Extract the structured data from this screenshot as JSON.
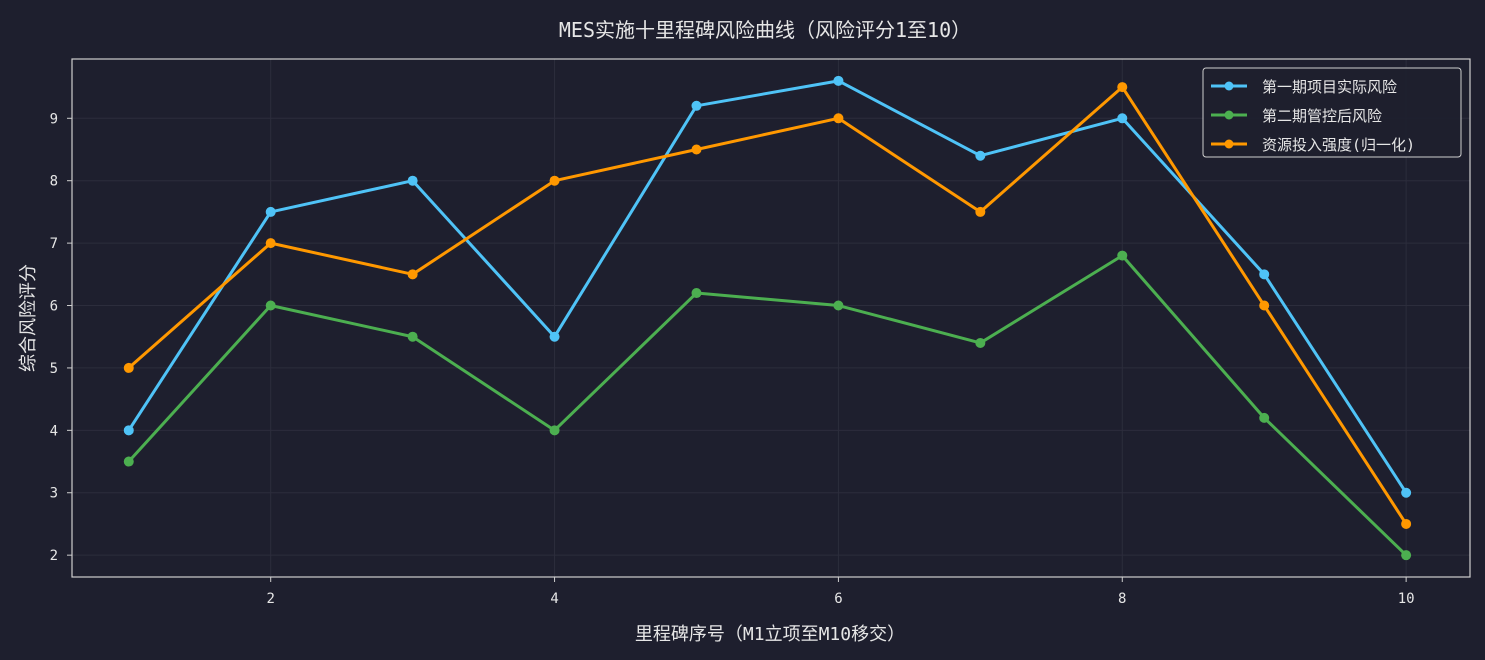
{
  "chart_data": {
    "type": "line",
    "title": "MES实施十里程碑风险曲线（风险评分1至10）",
    "xlabel": "里程碑序号（M1立项至M10移交）",
    "ylabel": "综合风险评分",
    "x": [
      1,
      2,
      3,
      4,
      5,
      6,
      7,
      8,
      9,
      10
    ],
    "xlim": [
      0.6,
      10.45
    ],
    "ylim": [
      1.65,
      9.95
    ],
    "xticks": [
      2,
      4,
      6,
      8,
      10
    ],
    "yticks": [
      2,
      3,
      4,
      5,
      6,
      7,
      8,
      9
    ],
    "grid": true,
    "legend_position": "top-right",
    "series": [
      {
        "name": "第一期项目实际风险",
        "color": "#4fc3f7",
        "values": [
          4.0,
          7.5,
          8.0,
          5.5,
          9.2,
          9.6,
          8.4,
          9.0,
          6.5,
          3.0
        ]
      },
      {
        "name": "第二期管控后风险",
        "color": "#4caf50",
        "values": [
          3.5,
          6.0,
          5.5,
          4.0,
          6.2,
          6.0,
          5.4,
          6.8,
          4.2,
          2.0
        ]
      },
      {
        "name": "资源投入强度(归一化)",
        "color": "#ff9800",
        "values": [
          5.0,
          7.0,
          6.5,
          8.0,
          8.5,
          9.0,
          7.5,
          9.5,
          6.0,
          2.5
        ]
      }
    ]
  }
}
